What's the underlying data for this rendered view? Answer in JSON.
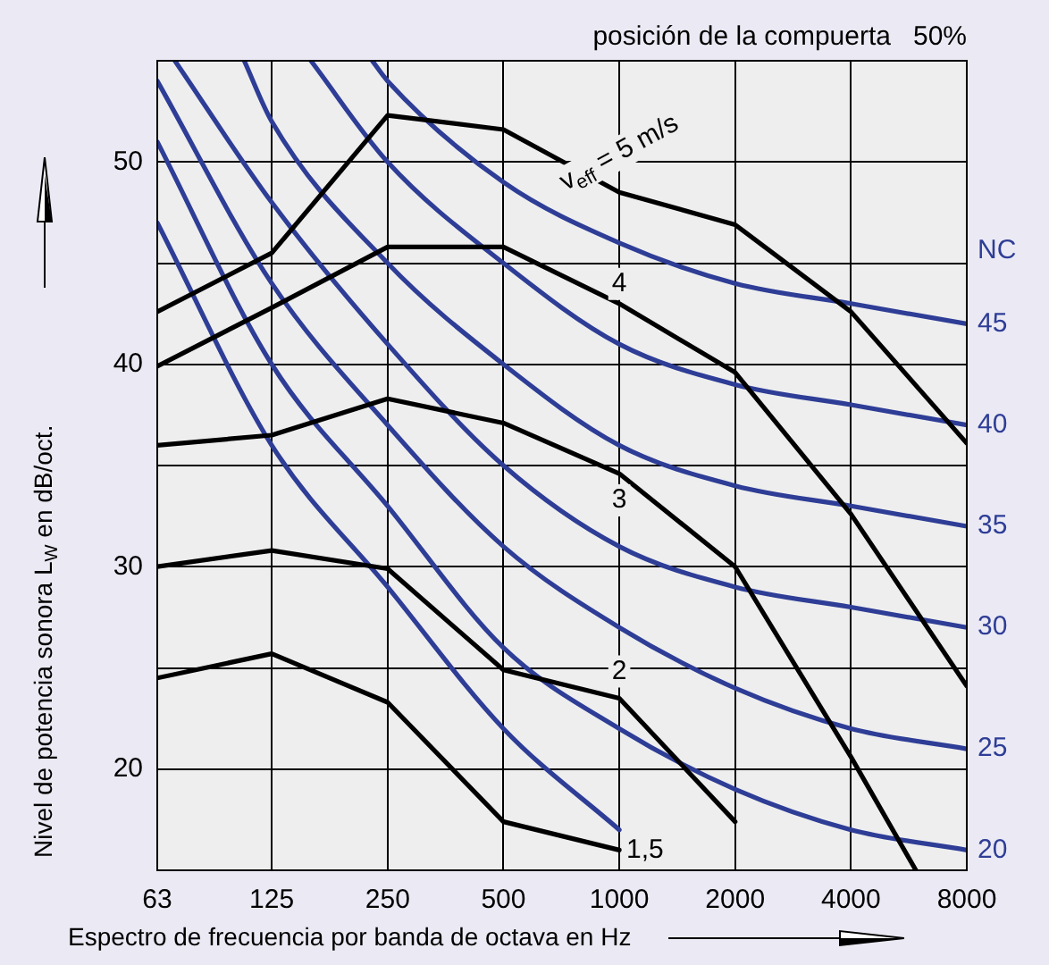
{
  "chart_data": {
    "type": "line",
    "subtitle": "posición de la compuerta   50%",
    "xlabel": "Espectro de frecuencia por banda de octava en Hz",
    "ylabel": "Nivel de potencia sonora L$_{W}$ en dB/oct.",
    "annotations": [
      "NC"
    ],
    "x": [
      63,
      125,
      250,
      500,
      1000,
      2000,
      4000,
      8000
    ],
    "log": "x",
    "xlim": [
      63,
      8000
    ],
    "xticks": [
      63,
      125,
      250,
      500,
      1000,
      2000,
      4000,
      8000
    ],
    "ylim": [
      15,
      55
    ],
    "yticks": [
      20,
      {
        "value": 25,
        "label": null
      },
      30,
      {
        "value": 35,
        "label": null
      },
      40,
      {
        "value": 45,
        "label": null
      },
      50
    ],
    "grid": true,
    "legend": false,
    "marker": "none",
    "line_style": "solid",
    "series": [
      {
        "name": "v$_{eff}$ = 5 m/s",
        "color": "#000000",
        "values": [
          42.6,
          45.5,
          52.3,
          51.6,
          48.5,
          46.9,
          42.6,
          36.1
        ]
      },
      {
        "name": "4",
        "color": "#000000",
        "values": [
          39.9,
          42.8,
          45.8,
          45.8,
          43.0,
          39.6,
          32.6,
          24.1
        ]
      },
      {
        "name": "3",
        "color": "#000000",
        "x": [
          63,
          125,
          250,
          500,
          1000,
          2000,
          4000,
          5900
        ],
        "values": [
          36.0,
          36.5,
          38.3,
          37.1,
          34.6,
          30.0,
          20.6,
          15.0
        ]
      },
      {
        "name": "2",
        "color": "#000000",
        "x": [
          63,
          125,
          250,
          500,
          1000,
          2000
        ],
        "values": [
          30.0,
          30.8,
          29.9,
          24.9,
          23.5,
          17.4
        ]
      },
      {
        "name": "1,5",
        "color": "#000000",
        "x": [
          63,
          125,
          250,
          500,
          1000
        ],
        "values": [
          24.5,
          25.7,
          23.3,
          17.4,
          16.0
        ]
      },
      {
        "name": "45",
        "color": "#2e3d96",
        "x": [
          228,
          250,
          500,
          1000,
          2000,
          4000,
          8000
        ],
        "values": [
          55,
          54,
          49,
          46,
          44,
          43,
          42
        ]
      },
      {
        "name": "40",
        "color": "#2e3d96",
        "x": [
          158,
          250,
          500,
          1000,
          2000,
          4000,
          8000
        ],
        "values": [
          55,
          50,
          45,
          41,
          39,
          38,
          37
        ]
      },
      {
        "name": "35",
        "color": "#2e3d96",
        "x": [
          106,
          125,
          250,
          500,
          1000,
          2000,
          4000,
          8000
        ],
        "values": [
          55,
          52,
          45,
          40,
          36,
          34,
          33,
          32
        ]
      },
      {
        "name": "30",
        "color": "#2e3d96",
        "x": [
          70,
          125,
          250,
          500,
          1000,
          2000,
          4000,
          8000
        ],
        "values": [
          55,
          48,
          41,
          35,
          31,
          29,
          28,
          27
        ]
      },
      {
        "name": "25",
        "color": "#2e3d96",
        "values": [
          54,
          44,
          37,
          31,
          27,
          24,
          22,
          21
        ]
      },
      {
        "name": "20",
        "color": "#2e3d96",
        "values": [
          51,
          40,
          33,
          26,
          22,
          19,
          17,
          16
        ]
      },
      {
        "color": "#2e3d96",
        "x": [
          63,
          125,
          250,
          500,
          1000
        ],
        "values": [
          47,
          36,
          29,
          22,
          17
        ]
      }
    ]
  }
}
